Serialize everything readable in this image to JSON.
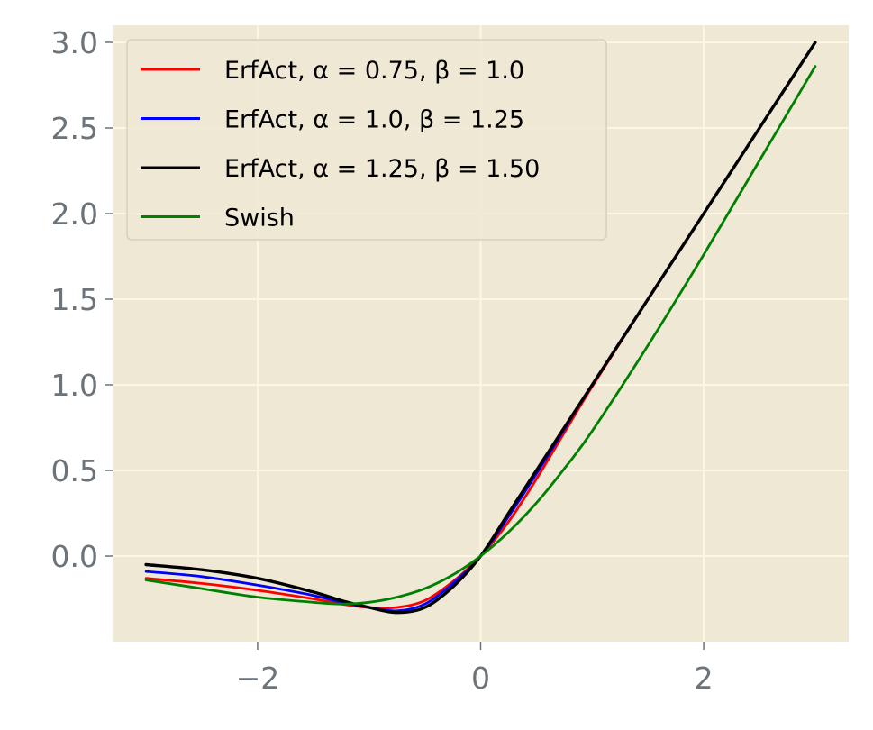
{
  "chart_data": {
    "type": "line",
    "title": "",
    "xlabel": "",
    "ylabel": "",
    "xlim": [
      -3.3,
      3.3
    ],
    "ylim": [
      -0.5,
      3.1
    ],
    "xticks": [
      -2,
      0,
      2
    ],
    "xtick_labels": [
      "−2",
      "0",
      "2"
    ],
    "yticks": [
      0.0,
      0.5,
      1.0,
      1.5,
      2.0,
      2.5,
      3.0
    ],
    "ytick_labels": [
      "0.0",
      "0.5",
      "1.0",
      "1.5",
      "2.0",
      "2.5",
      "3.0"
    ],
    "grid": true,
    "legend_position": "top-left",
    "background": "#eee8d5",
    "x": [
      -3.0,
      -2.5,
      -2.0,
      -1.5,
      -1.25,
      -1.0,
      -0.75,
      -0.5,
      -0.25,
      0.0,
      0.25,
      0.5,
      0.75,
      1.0,
      1.5,
      2.0,
      2.5,
      3.0
    ],
    "series": [
      {
        "name": "ErfAct, α = 0.75, β = 1.0",
        "color": "#ff0000",
        "values": [
          -0.13,
          -0.16,
          -0.2,
          -0.25,
          -0.28,
          -0.3,
          -0.3,
          -0.26,
          -0.15,
          0.0,
          0.2,
          0.45,
          0.72,
          0.99,
          1.5,
          2.0,
          2.5,
          3.0
        ]
      },
      {
        "name": "ErfAct, α = 1.0, β = 1.25",
        "color": "#0000ff",
        "values": [
          -0.09,
          -0.12,
          -0.17,
          -0.23,
          -0.27,
          -0.3,
          -0.32,
          -0.28,
          -0.16,
          0.0,
          0.23,
          0.48,
          0.74,
          1.0,
          1.5,
          2.0,
          2.5,
          3.0
        ]
      },
      {
        "name": "ErfAct, α = 1.25, β = 1.50",
        "color": "#000000",
        "values": [
          -0.05,
          -0.08,
          -0.13,
          -0.21,
          -0.26,
          -0.3,
          -0.33,
          -0.3,
          -0.18,
          0.0,
          0.25,
          0.5,
          0.75,
          1.0,
          1.5,
          2.0,
          2.5,
          3.0
        ]
      },
      {
        "name": "Swish",
        "color": "#008000",
        "values": [
          -0.14,
          -0.19,
          -0.24,
          -0.27,
          -0.28,
          -0.27,
          -0.24,
          -0.19,
          -0.11,
          0.0,
          0.14,
          0.31,
          0.51,
          0.73,
          1.23,
          1.76,
          2.31,
          2.86
        ]
      }
    ]
  }
}
